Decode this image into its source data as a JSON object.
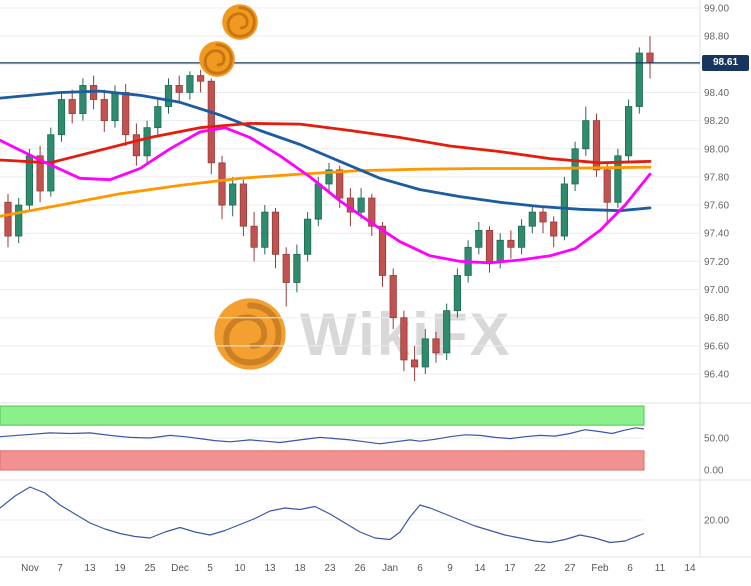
{
  "watermark": {
    "text": "WikiFX"
  },
  "price_axis": {
    "labels": [
      "99.00",
      "98.80",
      "98.60",
      "98.40",
      "98.20",
      "98.00",
      "97.80",
      "97.60",
      "97.40",
      "97.20",
      "97.00",
      "96.80",
      "96.60",
      "96.40"
    ],
    "max": 99.0,
    "step": 0.2,
    "last_price": 98.61,
    "last_price_label": "98.61"
  },
  "x_axis": {
    "labels": [
      "Nov",
      "7",
      "13",
      "19",
      "25",
      "Dec",
      "5",
      "10",
      "13",
      "18",
      "23",
      "26",
      "Jan",
      "6",
      "9",
      "14",
      "17",
      "22",
      "27",
      "Feb",
      "6",
      "11",
      "14"
    ]
  },
  "colors": {
    "candle_up_fill": "#2f8b6e",
    "candle_up_stroke": "#206a52",
    "candle_down_fill": "#c25250",
    "candle_down_stroke": "#943c3a",
    "ma_fast_magenta": "#ff00ff",
    "ma_mid_blue": "#1c5c9f",
    "ma_slow_red": "#e41c0e",
    "ma_long_orange": "#ff9800",
    "price_line_navy": "#16355f",
    "oscillator_line": "#3a57a7",
    "overbought_band_fill": "#8bf08b",
    "overbought_band_stroke": "#4eca4e",
    "oversold_band_fill": "#f29191",
    "oversold_band_stroke": "#df6b6b",
    "grid": "#ececec",
    "separator": "#e0e0e0",
    "logo_orange": "#F2991F"
  },
  "chart_data": [
    {
      "type": "candlestick",
      "name": "price-panel",
      "ylim": [
        96.3,
        99.06
      ],
      "ytick_step": 0.2,
      "last_price": 98.61,
      "hline": 98.61,
      "candles": [
        [
          97.62,
          97.68,
          97.3,
          97.38
        ],
        [
          97.38,
          97.65,
          97.33,
          97.6
        ],
        [
          97.6,
          98.0,
          97.55,
          97.95
        ],
        [
          97.95,
          98.02,
          97.62,
          97.7
        ],
        [
          97.7,
          98.15,
          97.66,
          98.1
        ],
        [
          98.1,
          98.4,
          98.05,
          98.35
        ],
        [
          98.35,
          98.42,
          98.18,
          98.25
        ],
        [
          98.25,
          98.5,
          98.2,
          98.45
        ],
        [
          98.45,
          98.52,
          98.28,
          98.35
        ],
        [
          98.35,
          98.42,
          98.12,
          98.2
        ],
        [
          98.2,
          98.45,
          98.15,
          98.4
        ],
        [
          98.4,
          98.46,
          98.02,
          98.1
        ],
        [
          98.1,
          98.18,
          97.88,
          97.95
        ],
        [
          97.95,
          98.2,
          97.9,
          98.15
        ],
        [
          98.15,
          98.35,
          98.1,
          98.3
        ],
        [
          98.3,
          98.5,
          98.25,
          98.45
        ],
        [
          98.45,
          98.52,
          98.32,
          98.4
        ],
        [
          98.4,
          98.55,
          98.35,
          98.52
        ],
        [
          98.52,
          98.56,
          98.4,
          98.48
        ],
        [
          98.48,
          98.5,
          97.82,
          97.9
        ],
        [
          97.9,
          97.95,
          97.5,
          97.6
        ],
        [
          97.6,
          97.8,
          97.52,
          97.75
        ],
        [
          97.75,
          97.78,
          97.38,
          97.45
        ],
        [
          97.45,
          97.55,
          97.2,
          97.3
        ],
        [
          97.3,
          97.6,
          97.25,
          97.55
        ],
        [
          97.55,
          97.58,
          97.15,
          97.25
        ],
        [
          97.25,
          97.3,
          96.88,
          97.05
        ],
        [
          97.05,
          97.32,
          96.98,
          97.25
        ],
        [
          97.25,
          97.55,
          97.2,
          97.5
        ],
        [
          97.5,
          97.8,
          97.45,
          97.75
        ],
        [
          97.75,
          97.9,
          97.68,
          97.85
        ],
        [
          97.85,
          97.88,
          97.58,
          97.65
        ],
        [
          97.65,
          97.72,
          97.45,
          97.55
        ],
        [
          97.55,
          97.72,
          97.5,
          97.65
        ],
        [
          97.65,
          97.68,
          97.38,
          97.45
        ],
        [
          97.45,
          97.48,
          97.02,
          97.1
        ],
        [
          97.1,
          97.15,
          96.72,
          96.8
        ],
        [
          96.8,
          96.85,
          96.42,
          96.5
        ],
        [
          96.5,
          96.6,
          96.35,
          96.45
        ],
        [
          96.45,
          96.72,
          96.4,
          96.65
        ],
        [
          96.65,
          96.7,
          96.48,
          96.55
        ],
        [
          96.55,
          96.9,
          96.5,
          96.85
        ],
        [
          96.85,
          97.15,
          96.8,
          97.1
        ],
        [
          97.1,
          97.35,
          97.05,
          97.3
        ],
        [
          97.3,
          97.48,
          97.25,
          97.42
        ],
        [
          97.42,
          97.45,
          97.12,
          97.2
        ],
        [
          97.2,
          97.4,
          97.15,
          97.35
        ],
        [
          97.35,
          97.42,
          97.22,
          97.3
        ],
        [
          97.3,
          97.5,
          97.25,
          97.45
        ],
        [
          97.45,
          97.6,
          97.4,
          97.55
        ],
        [
          97.55,
          97.58,
          97.4,
          97.48
        ],
        [
          97.48,
          97.52,
          97.3,
          97.38
        ],
        [
          97.38,
          97.8,
          97.35,
          97.75
        ],
        [
          97.75,
          98.05,
          97.7,
          98.0
        ],
        [
          98.0,
          98.3,
          97.95,
          98.2
        ],
        [
          98.2,
          98.25,
          97.8,
          97.85
        ],
        [
          97.85,
          97.9,
          97.48,
          97.62
        ],
        [
          97.62,
          98.0,
          97.58,
          97.95
        ],
        [
          97.95,
          98.35,
          97.9,
          98.3
        ],
        [
          98.3,
          98.72,
          98.25,
          98.68
        ],
        [
          98.68,
          98.8,
          98.5,
          98.61
        ]
      ],
      "overlays": [
        {
          "name": "ma-long-orange",
          "color_key": "ma_long_orange",
          "points": [
            [
              0,
              97.52
            ],
            [
              60,
              97.6
            ],
            [
              120,
              97.68
            ],
            [
              180,
              97.74
            ],
            [
              240,
              97.79
            ],
            [
              300,
              97.82
            ],
            [
              360,
              97.845
            ],
            [
              420,
              97.855
            ],
            [
              480,
              97.86
            ],
            [
              540,
              97.86
            ],
            [
              600,
              97.865
            ],
            [
              650,
              97.87
            ]
          ]
        },
        {
          "name": "ma-mid-blue",
          "color_key": "ma_mid_blue",
          "points": [
            [
              0,
              98.36
            ],
            [
              60,
              98.4
            ],
            [
              100,
              98.41
            ],
            [
              140,
              98.38
            ],
            [
              180,
              98.33
            ],
            [
              220,
              98.24
            ],
            [
              260,
              98.13
            ],
            [
              300,
              98.03
            ],
            [
              340,
              97.91
            ],
            [
              380,
              97.79
            ],
            [
              420,
              97.71
            ],
            [
              460,
              97.66
            ],
            [
              500,
              97.62
            ],
            [
              540,
              97.59
            ],
            [
              580,
              97.57
            ],
            [
              620,
              97.56
            ],
            [
              650,
              97.58
            ]
          ]
        },
        {
          "name": "ma-slow-red",
          "color_key": "ma_slow_red",
          "points": [
            [
              0,
              97.92
            ],
            [
              50,
              97.9
            ],
            [
              100,
              97.99
            ],
            [
              150,
              98.08
            ],
            [
              200,
              98.15
            ],
            [
              250,
              98.18
            ],
            [
              300,
              98.175
            ],
            [
              350,
              98.13
            ],
            [
              400,
              98.08
            ],
            [
              450,
              98.02
            ],
            [
              500,
              97.98
            ],
            [
              550,
              97.93
            ],
            [
              600,
              97.9
            ],
            [
              650,
              97.91
            ]
          ]
        },
        {
          "name": "ma-fast-magenta",
          "color_key": "ma_fast_magenta",
          "points": [
            [
              0,
              98.06
            ],
            [
              40,
              97.92
            ],
            [
              80,
              97.79
            ],
            [
              110,
              97.78
            ],
            [
              140,
              97.86
            ],
            [
              170,
              98.0
            ],
            [
              200,
              98.12
            ],
            [
              225,
              98.15
            ],
            [
              250,
              98.08
            ],
            [
              280,
              97.95
            ],
            [
              310,
              97.8
            ],
            [
              340,
              97.63
            ],
            [
              370,
              97.48
            ],
            [
              400,
              97.34
            ],
            [
              430,
              97.24
            ],
            [
              460,
              97.2
            ],
            [
              490,
              97.19
            ],
            [
              520,
              97.21
            ],
            [
              550,
              97.24
            ],
            [
              575,
              97.29
            ],
            [
              600,
              97.42
            ],
            [
              625,
              97.6
            ],
            [
              650,
              97.82
            ]
          ]
        }
      ]
    },
    {
      "type": "line",
      "name": "rsi-panel",
      "ylim": [
        0,
        100
      ],
      "bands": [
        {
          "from": 70,
          "to": 100,
          "fill_key": "overbought_band_fill",
          "stroke_key": "overbought_band_stroke"
        },
        {
          "from": 0,
          "to": 30,
          "fill_key": "oversold_band_fill",
          "stroke_key": "oversold_band_stroke"
        }
      ],
      "axis": [
        {
          "value": 50,
          "label": "50.00"
        },
        {
          "value": 0,
          "label": "0.00"
        }
      ],
      "points": [
        [
          0,
          52
        ],
        [
          25,
          55
        ],
        [
          50,
          58
        ],
        [
          70,
          57
        ],
        [
          90,
          58
        ],
        [
          110,
          54
        ],
        [
          130,
          51
        ],
        [
          150,
          50
        ],
        [
          170,
          54
        ],
        [
          185,
          52
        ],
        [
          200,
          49
        ],
        [
          215,
          46
        ],
        [
          230,
          44
        ],
        [
          250,
          47
        ],
        [
          265,
          45
        ],
        [
          280,
          43
        ],
        [
          300,
          47
        ],
        [
          320,
          51
        ],
        [
          335,
          49
        ],
        [
          350,
          47
        ],
        [
          365,
          44
        ],
        [
          380,
          41
        ],
        [
          395,
          44
        ],
        [
          410,
          47
        ],
        [
          420,
          45
        ],
        [
          435,
          48
        ],
        [
          450,
          52
        ],
        [
          465,
          55
        ],
        [
          480,
          54
        ],
        [
          495,
          51
        ],
        [
          510,
          49
        ],
        [
          525,
          52
        ],
        [
          540,
          54
        ],
        [
          555,
          53
        ],
        [
          570,
          57
        ],
        [
          585,
          63
        ],
        [
          600,
          60
        ],
        [
          612,
          57
        ],
        [
          624,
          62
        ],
        [
          636,
          66
        ],
        [
          644,
          64
        ]
      ]
    },
    {
      "type": "line",
      "name": "momentum-panel",
      "ylim": [
        0,
        45
      ],
      "axis": [
        {
          "value": 20,
          "label": "20.00"
        }
      ],
      "points": [
        [
          0,
          28
        ],
        [
          15,
          36
        ],
        [
          30,
          42
        ],
        [
          45,
          38
        ],
        [
          60,
          30
        ],
        [
          75,
          24
        ],
        [
          90,
          18
        ],
        [
          105,
          14
        ],
        [
          120,
          11
        ],
        [
          135,
          9
        ],
        [
          150,
          8
        ],
        [
          165,
          12
        ],
        [
          180,
          15
        ],
        [
          195,
          12
        ],
        [
          210,
          10
        ],
        [
          225,
          13
        ],
        [
          240,
          17
        ],
        [
          255,
          21
        ],
        [
          270,
          26
        ],
        [
          285,
          28
        ],
        [
          300,
          27
        ],
        [
          315,
          29
        ],
        [
          330,
          24
        ],
        [
          345,
          18
        ],
        [
          360,
          12
        ],
        [
          375,
          8
        ],
        [
          390,
          7
        ],
        [
          400,
          12
        ],
        [
          410,
          22
        ],
        [
          420,
          30
        ],
        [
          430,
          28
        ],
        [
          445,
          24
        ],
        [
          460,
          20
        ],
        [
          475,
          16
        ],
        [
          490,
          13
        ],
        [
          505,
          10
        ],
        [
          520,
          8
        ],
        [
          535,
          6
        ],
        [
          550,
          5
        ],
        [
          565,
          7
        ],
        [
          580,
          10
        ],
        [
          595,
          8
        ],
        [
          610,
          5
        ],
        [
          625,
          6
        ],
        [
          644,
          11
        ]
      ]
    }
  ]
}
